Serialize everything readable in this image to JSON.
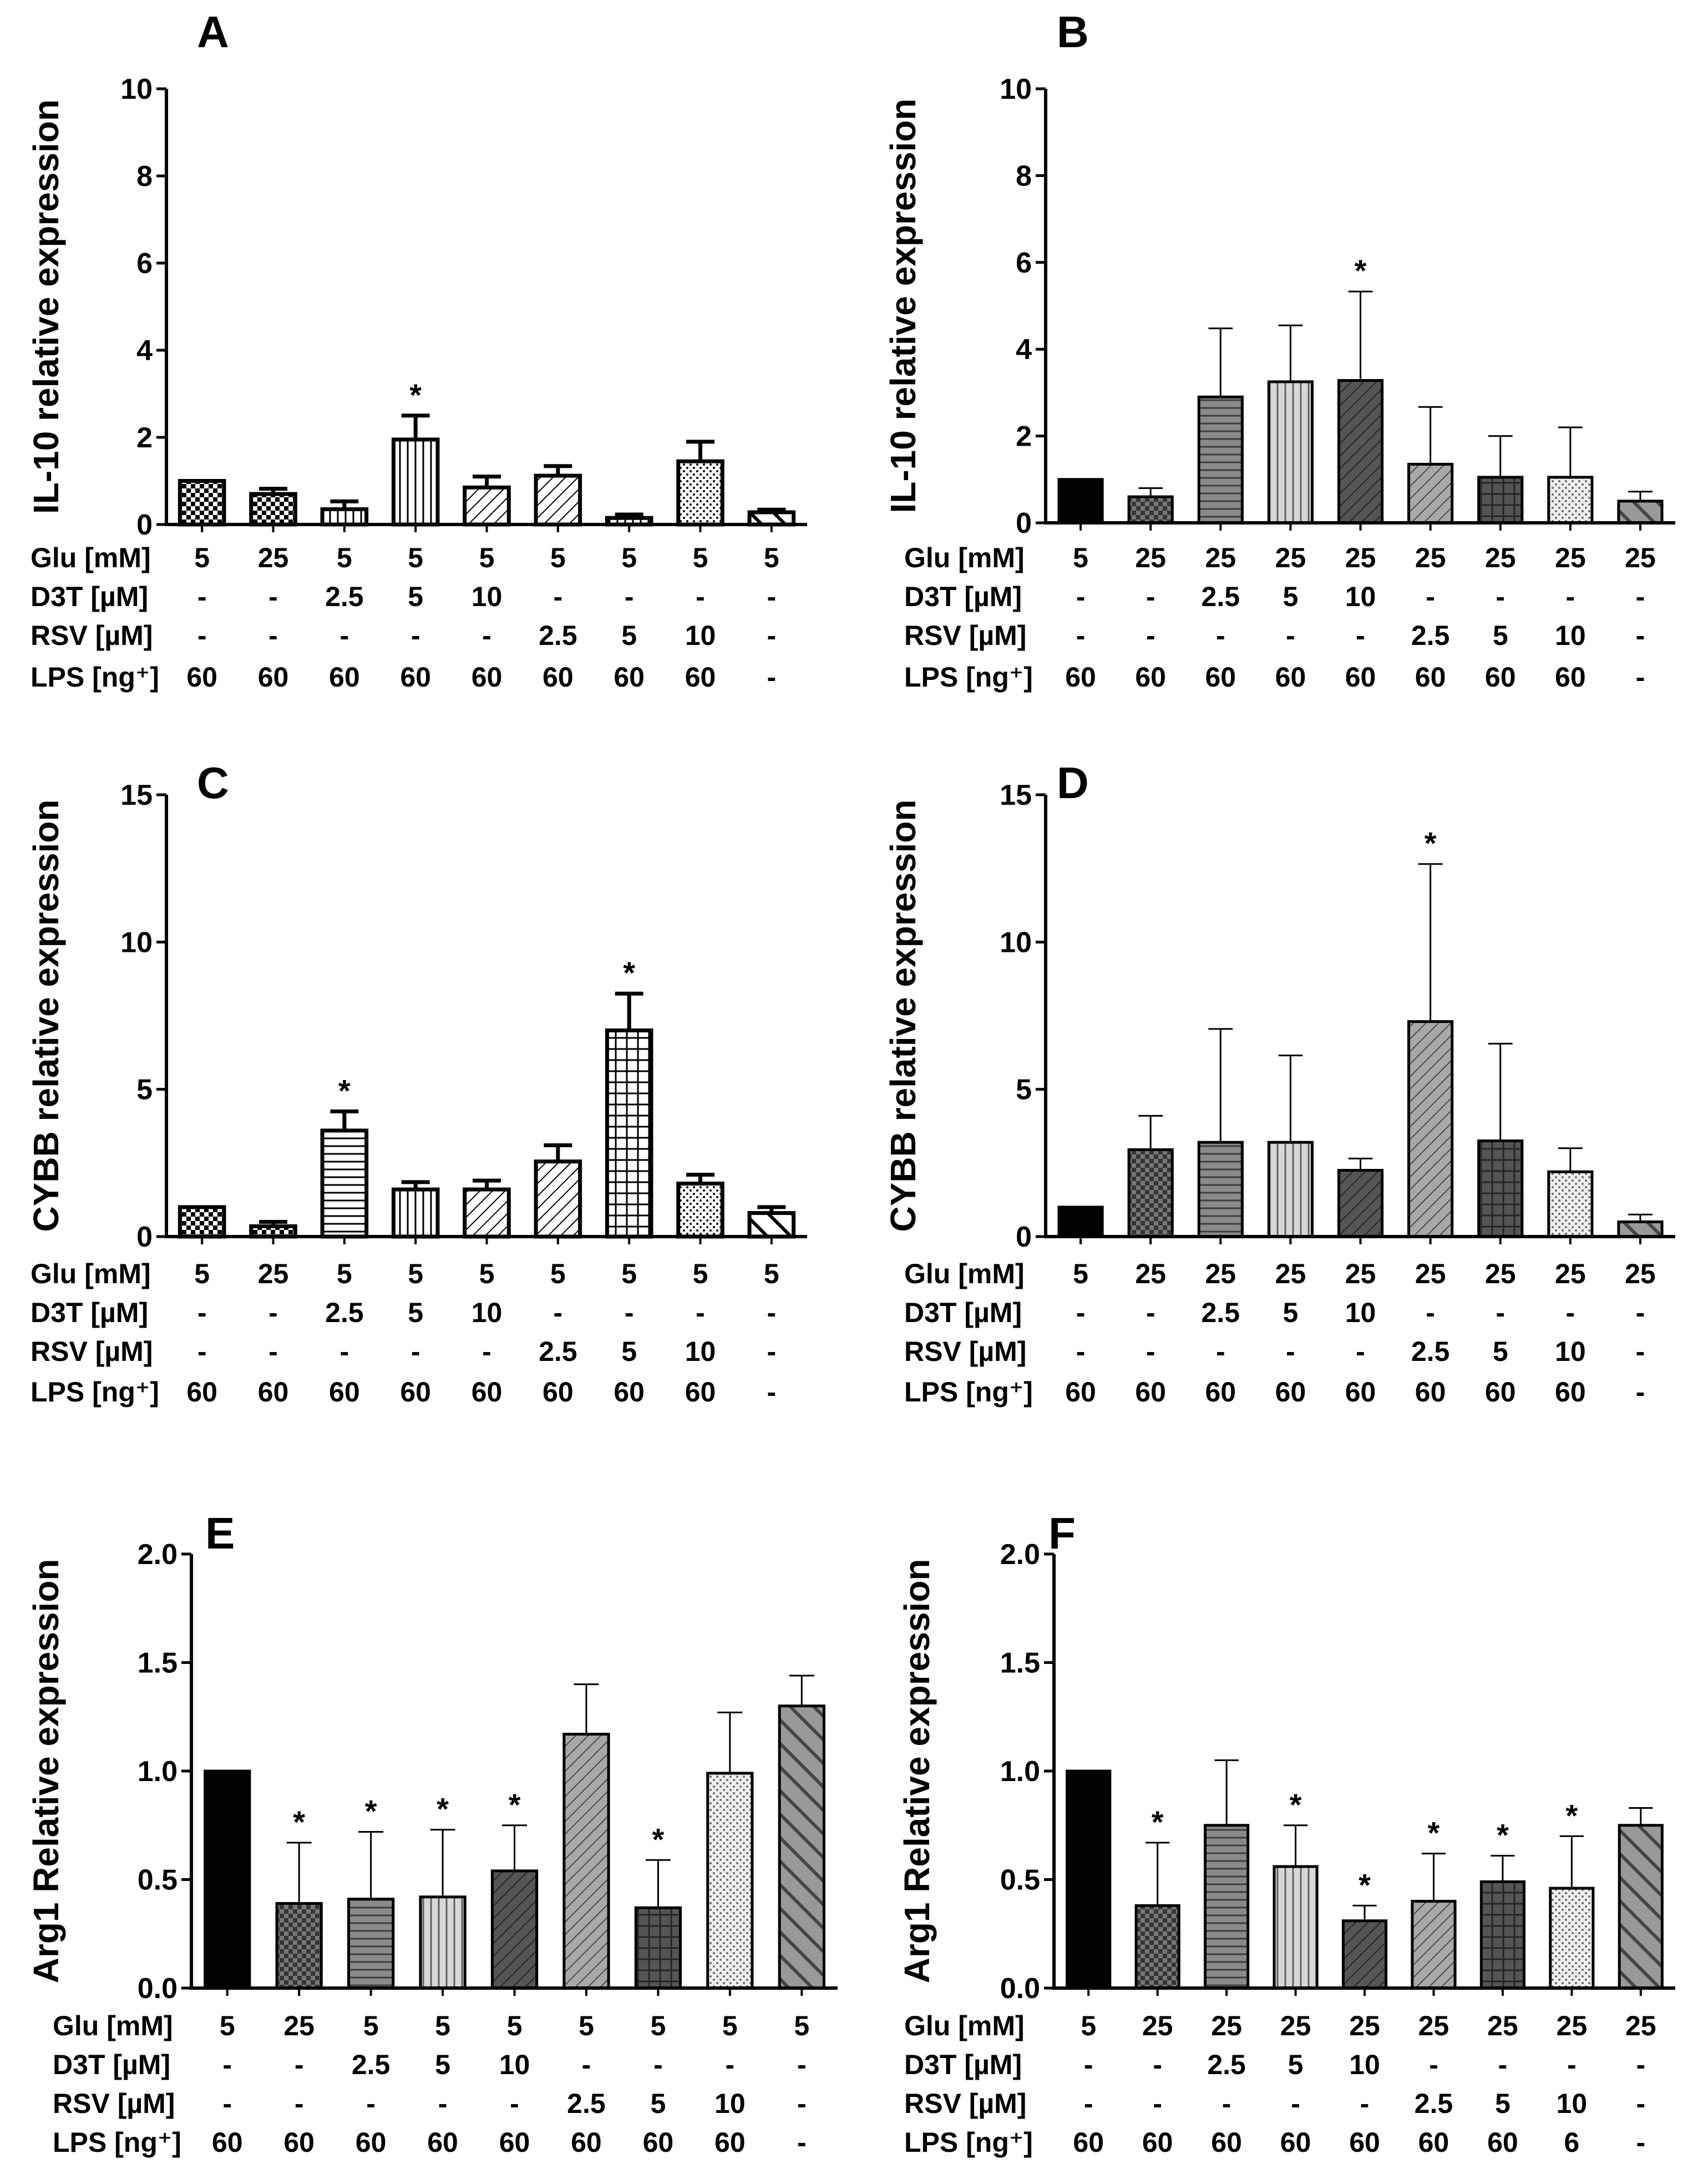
{
  "chart_data": [
    {
      "type": "bar",
      "panel": "A",
      "ylabel": "IL-10 relative expression",
      "ylim": [
        0,
        10
      ],
      "yticks": [
        0,
        2,
        4,
        6,
        8,
        10
      ],
      "errorbar_style": "bold",
      "values": [
        1.0,
        0.7,
        0.35,
        1.95,
        0.85,
        1.12,
        0.15,
        1.45,
        0.28
      ],
      "errors": [
        0.0,
        0.12,
        0.18,
        0.55,
        0.25,
        0.22,
        0.08,
        0.45,
        0.06
      ],
      "significant": [
        false,
        false,
        false,
        true,
        false,
        false,
        false,
        false,
        false
      ],
      "patterns": [
        "checker",
        "checker",
        "vlines",
        "vlines",
        "diag",
        "diag",
        "hlinesgrid",
        "dots",
        "diagwide"
      ],
      "fills": [
        "#ffffff",
        "#ffffff",
        "#ffffff",
        "#ffffff",
        "#ffffff",
        "#ffffff",
        "#ffffff",
        "#ffffff",
        "#ffffff"
      ],
      "conditions": [
        {
          "label": "Glu [mM]",
          "values": [
            "5",
            "25",
            "5",
            "5",
            "5",
            "5",
            "5",
            "5",
            "5"
          ]
        },
        {
          "label": "D3T [µM]",
          "values": [
            "-",
            "-",
            "2.5",
            "5",
            "10",
            "-",
            "-",
            "-",
            "-"
          ]
        },
        {
          "label": "RSV [µM]",
          "values": [
            "-",
            "-",
            "-",
            "-",
            "-",
            "2.5",
            "5",
            "10",
            "-"
          ]
        },
        {
          "label": "LPS [ng⁺]",
          "values": [
            "60",
            "60",
            "60",
            "60",
            "60",
            "60",
            "60",
            "60",
            "-"
          ]
        }
      ]
    },
    {
      "type": "bar",
      "panel": "B",
      "ylabel": "IL-10 relative expression",
      "ylim": [
        0,
        10
      ],
      "yticks": [
        0,
        2,
        4,
        6,
        8,
        10
      ],
      "errorbar_style": "thin",
      "values": [
        1.0,
        0.6,
        2.9,
        3.25,
        3.28,
        1.35,
        1.05,
        1.05,
        0.5
      ],
      "errors": [
        0.0,
        0.2,
        1.58,
        1.3,
        2.05,
        1.32,
        0.95,
        1.15,
        0.22
      ],
      "significant": [
        false,
        false,
        false,
        false,
        true,
        false,
        false,
        false,
        false
      ],
      "patterns": [
        "solid",
        "checker",
        "hlines",
        "vlines",
        "diag",
        "diag",
        "grid",
        "dots",
        "diagwide"
      ],
      "fills": [
        "#000000",
        "#777777",
        "#8a8a8a",
        "#d8d8d8",
        "#555555",
        "#a8a8a8",
        "#555555",
        "#eeeeee",
        "#999999"
      ],
      "conditions": [
        {
          "label": "Glu [mM]",
          "values": [
            "5",
            "25",
            "25",
            "25",
            "25",
            "25",
            "25",
            "25",
            "25"
          ]
        },
        {
          "label": "D3T [µM]",
          "values": [
            "-",
            "-",
            "2.5",
            "5",
            "10",
            "-",
            "-",
            "-",
            "-"
          ]
        },
        {
          "label": "RSV [µM]",
          "values": [
            "-",
            "-",
            "-",
            "-",
            "-",
            "2.5",
            "5",
            "10",
            "-"
          ]
        },
        {
          "label": "LPS [ng⁺]",
          "values": [
            "60",
            "60",
            "60",
            "60",
            "60",
            "60",
            "60",
            "60",
            "-"
          ]
        }
      ]
    },
    {
      "type": "bar",
      "panel": "C",
      "ylabel": "CYBB relative expression",
      "ylim": [
        0,
        15
      ],
      "yticks": [
        0,
        5,
        10,
        15
      ],
      "errorbar_style": "bold",
      "values": [
        1.0,
        0.35,
        3.6,
        1.6,
        1.6,
        2.55,
        7.0,
        1.8,
        0.8
      ],
      "errors": [
        0.0,
        0.15,
        0.65,
        0.25,
        0.3,
        0.55,
        1.25,
        0.3,
        0.2
      ],
      "significant": [
        false,
        false,
        true,
        false,
        false,
        false,
        true,
        false,
        false
      ],
      "patterns": [
        "checker",
        "checker",
        "hlines",
        "vlines",
        "diag",
        "diag",
        "grid",
        "dots",
        "diagwide"
      ],
      "fills": [
        "#ffffff",
        "#ffffff",
        "#ffffff",
        "#ffffff",
        "#ffffff",
        "#ffffff",
        "#ffffff",
        "#ffffff",
        "#ffffff"
      ],
      "conditions": [
        {
          "label": "Glu [mM]",
          "values": [
            "5",
            "25",
            "5",
            "5",
            "5",
            "5",
            "5",
            "5",
            "5"
          ]
        },
        {
          "label": "D3T [µM]",
          "values": [
            "-",
            "-",
            "2.5",
            "5",
            "10",
            "-",
            "-",
            "-",
            "-"
          ]
        },
        {
          "label": "RSV [µM]",
          "values": [
            "-",
            "-",
            "-",
            "-",
            "-",
            "2.5",
            "5",
            "10",
            "-"
          ]
        },
        {
          "label": "LPS [ng⁺]",
          "values": [
            "60",
            "60",
            "60",
            "60",
            "60",
            "60",
            "60",
            "60",
            "-"
          ]
        }
      ]
    },
    {
      "type": "bar",
      "panel": "D",
      "ylabel": "CYBB relative expression",
      "ylim": [
        0,
        15
      ],
      "yticks": [
        0,
        5,
        10,
        15
      ],
      "errorbar_style": "thin",
      "values": [
        1.0,
        2.95,
        3.2,
        3.2,
        2.25,
        7.3,
        3.25,
        2.2,
        0.5
      ],
      "errors": [
        0.0,
        1.15,
        3.85,
        2.95,
        0.4,
        5.35,
        3.3,
        0.8,
        0.25
      ],
      "significant": [
        false,
        false,
        false,
        false,
        false,
        true,
        false,
        false,
        false
      ],
      "patterns": [
        "solid",
        "checker",
        "hlines",
        "vlines",
        "diag",
        "diag",
        "grid",
        "dots",
        "diagwide"
      ],
      "fills": [
        "#000000",
        "#777777",
        "#8a8a8a",
        "#d8d8d8",
        "#555555",
        "#a8a8a8",
        "#555555",
        "#eeeeee",
        "#999999"
      ],
      "conditions": [
        {
          "label": "Glu [mM]",
          "values": [
            "5",
            "25",
            "25",
            "25",
            "25",
            "25",
            "25",
            "25",
            "25"
          ]
        },
        {
          "label": "D3T [µM]",
          "values": [
            "-",
            "-",
            "2.5",
            "5",
            "10",
            "-",
            "-",
            "-",
            "-"
          ]
        },
        {
          "label": "RSV [µM]",
          "values": [
            "-",
            "-",
            "-",
            "-",
            "-",
            "2.5",
            "5",
            "10",
            "-"
          ]
        },
        {
          "label": "LPS [ng⁺]",
          "values": [
            "60",
            "60",
            "60",
            "60",
            "60",
            "60",
            "60",
            "60",
            "-"
          ]
        }
      ]
    },
    {
      "type": "bar",
      "panel": "E",
      "ylabel": "Arg1 Relative expression",
      "ylim": [
        0,
        2.0
      ],
      "yticks": [
        "0.0",
        "0.5",
        "1.0",
        "1.5",
        "2.0"
      ],
      "errorbar_style": "thin",
      "values": [
        1.0,
        0.39,
        0.41,
        0.42,
        0.54,
        1.17,
        0.37,
        0.99,
        1.3
      ],
      "errors": [
        0.0,
        0.28,
        0.31,
        0.31,
        0.21,
        0.23,
        0.22,
        0.28,
        0.14
      ],
      "significant": [
        false,
        true,
        true,
        true,
        true,
        false,
        true,
        false,
        false
      ],
      "patterns": [
        "solid",
        "checker",
        "hlines",
        "vlines",
        "diag",
        "diag",
        "grid",
        "dots",
        "diagwide"
      ],
      "fills": [
        "#000000",
        "#777777",
        "#8a8a8a",
        "#d8d8d8",
        "#555555",
        "#a8a8a8",
        "#555555",
        "#eeeeee",
        "#999999"
      ],
      "conditions": [
        {
          "label": "Glu [mM]",
          "values": [
            "5",
            "25",
            "5",
            "5",
            "5",
            "5",
            "5",
            "5",
            "5"
          ]
        },
        {
          "label": "D3T [µM]",
          "values": [
            "-",
            "-",
            "2.5",
            "5",
            "10",
            "-",
            "-",
            "-",
            "-"
          ]
        },
        {
          "label": "RSV [µM]",
          "values": [
            "-",
            "-",
            "-",
            "-",
            "-",
            "2.5",
            "5",
            "10",
            "-"
          ]
        },
        {
          "label": "LPS [ng⁺]",
          "values": [
            "60",
            "60",
            "60",
            "60",
            "60",
            "60",
            "60",
            "60",
            "-"
          ]
        }
      ]
    },
    {
      "type": "bar",
      "panel": "F",
      "ylabel": "Arg1 Relative expression",
      "ylim": [
        0,
        2.0
      ],
      "yticks": [
        "0.0",
        "0.5",
        "1.0",
        "1.5",
        "2.0"
      ],
      "errorbar_style": "thin",
      "values": [
        1.0,
        0.38,
        0.75,
        0.56,
        0.31,
        0.4,
        0.49,
        0.46,
        0.75
      ],
      "errors": [
        0.0,
        0.29,
        0.3,
        0.19,
        0.07,
        0.22,
        0.12,
        0.24,
        0.08
      ],
      "significant": [
        false,
        true,
        false,
        true,
        true,
        true,
        true,
        true,
        false
      ],
      "patterns": [
        "solid",
        "checker",
        "hlines",
        "vlines",
        "diag",
        "diag",
        "grid",
        "dots",
        "diagwide"
      ],
      "fills": [
        "#000000",
        "#777777",
        "#8a8a8a",
        "#d8d8d8",
        "#555555",
        "#a8a8a8",
        "#555555",
        "#eeeeee",
        "#999999"
      ],
      "conditions": [
        {
          "label": "Glu [mM]",
          "values": [
            "5",
            "25",
            "25",
            "25",
            "25",
            "25",
            "25",
            "25",
            "25"
          ]
        },
        {
          "label": "D3T [µM]",
          "values": [
            "-",
            "-",
            "2.5",
            "5",
            "10",
            "-",
            "-",
            "-",
            "-"
          ]
        },
        {
          "label": "RSV [µM]",
          "values": [
            "-",
            "-",
            "-",
            "-",
            "-",
            "2.5",
            "5",
            "10",
            "-"
          ]
        },
        {
          "label": "LPS [ng⁺]",
          "values": [
            "60",
            "60",
            "60",
            "60",
            "60",
            "60",
            "60",
            "6",
            "-"
          ]
        }
      ]
    }
  ]
}
